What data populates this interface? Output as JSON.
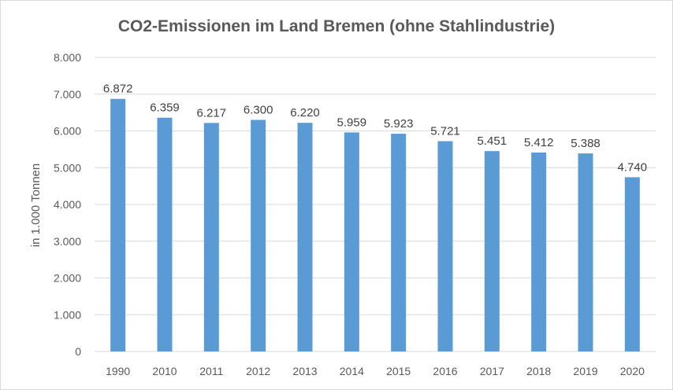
{
  "chart_data": {
    "type": "bar",
    "title": "CO2-Emissionen im Land Bremen (ohne Stahlindustrie)",
    "xlabel": "",
    "ylabel": "in 1.000 Tonnen",
    "categories": [
      "1990",
      "2010",
      "2011",
      "2012",
      "2013",
      "2014",
      "2015",
      "2016",
      "2017",
      "2018",
      "2019",
      "2020"
    ],
    "values": [
      6872,
      6359,
      6217,
      6300,
      6220,
      5959,
      5923,
      5721,
      5451,
      5412,
      5388,
      4740
    ],
    "value_labels": [
      "6.872",
      "6.359",
      "6.217",
      "6.300",
      "6.220",
      "5.959",
      "5.923",
      "5.721",
      "5.451",
      "5.412",
      "5.388",
      "4.740"
    ],
    "ylim": [
      0,
      8000
    ],
    "yticks": [
      0,
      1000,
      2000,
      3000,
      4000,
      5000,
      6000,
      7000,
      8000
    ],
    "ytick_labels": [
      "0",
      "1.000",
      "2.000",
      "3.000",
      "4.000",
      "5.000",
      "6.000",
      "7.000",
      "8.000"
    ],
    "grid": true,
    "legend": "none",
    "bar_color": "#5b9bd5",
    "grid_color": "#d9d9d9",
    "text_color": "#595959"
  }
}
